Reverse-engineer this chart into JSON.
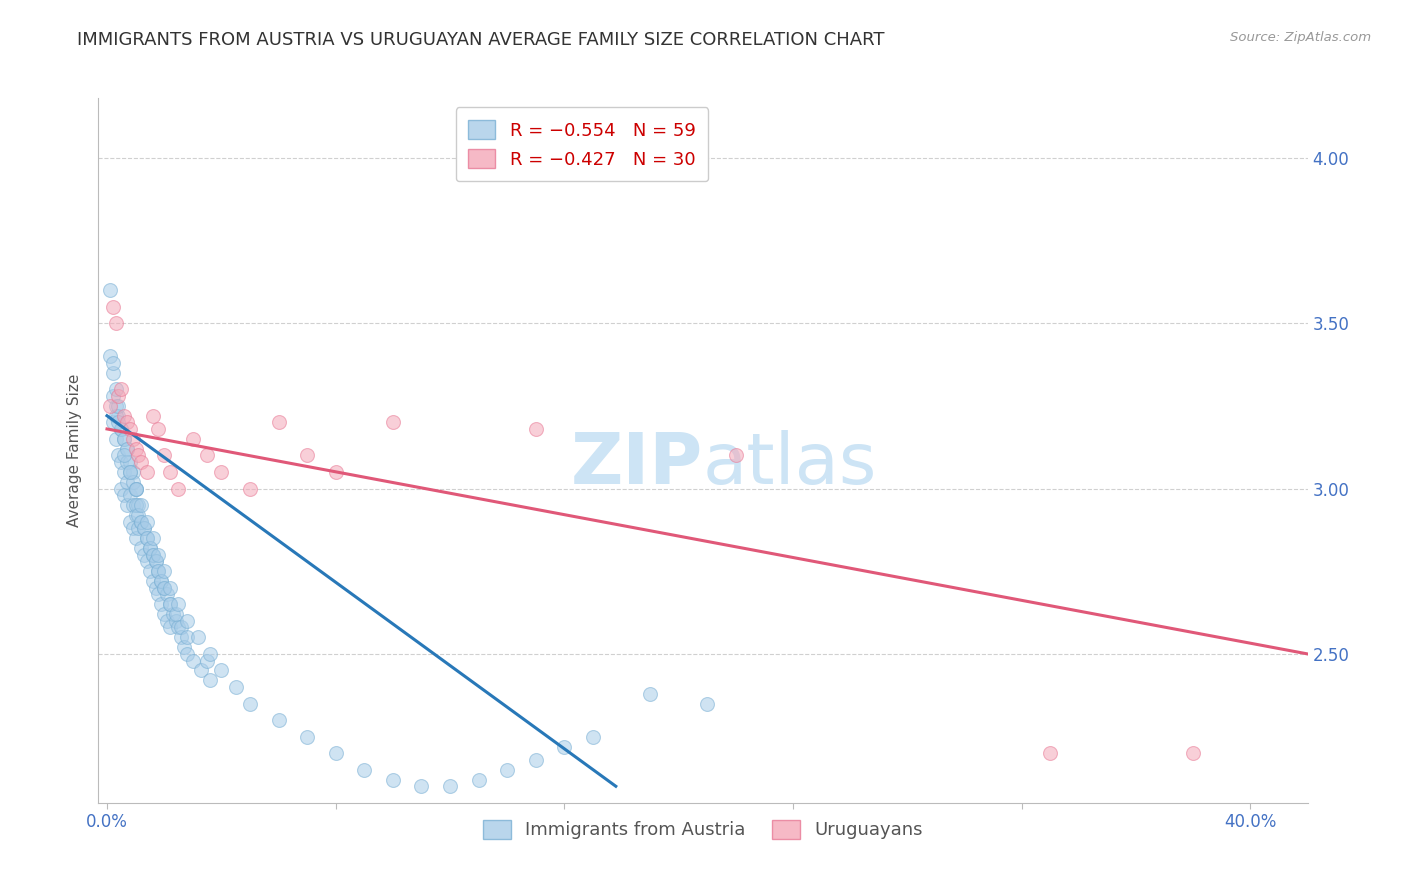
{
  "title": "IMMIGRANTS FROM AUSTRIA VS URUGUAYAN AVERAGE FAMILY SIZE CORRELATION CHART",
  "source": "Source: ZipAtlas.com",
  "ylabel": "Average Family Size",
  "yticks_right": [
    2.5,
    3.0,
    3.5,
    4.0
  ],
  "ytick_labels_right": [
    "2.50",
    "3.00",
    "3.50",
    "4.00"
  ],
  "ylim": [
    2.05,
    4.18
  ],
  "xlim": [
    -0.003,
    0.42
  ],
  "watermark_zip": "ZIP",
  "watermark_atlas": "atlas",
  "blue_scatter_x": [
    0.002,
    0.002,
    0.003,
    0.003,
    0.004,
    0.004,
    0.005,
    0.005,
    0.005,
    0.006,
    0.006,
    0.006,
    0.007,
    0.007,
    0.007,
    0.008,
    0.008,
    0.008,
    0.009,
    0.009,
    0.009,
    0.01,
    0.01,
    0.01,
    0.011,
    0.011,
    0.012,
    0.012,
    0.013,
    0.013,
    0.014,
    0.014,
    0.015,
    0.015,
    0.016,
    0.016,
    0.017,
    0.017,
    0.018,
    0.018,
    0.019,
    0.019,
    0.02,
    0.02,
    0.021,
    0.021,
    0.022,
    0.022,
    0.023,
    0.024,
    0.025,
    0.026,
    0.027,
    0.028,
    0.03,
    0.033,
    0.036,
    0.19,
    0.21
  ],
  "blue_scatter_y": [
    3.35,
    3.2,
    3.25,
    3.15,
    3.22,
    3.1,
    3.18,
    3.08,
    3.0,
    3.15,
    3.05,
    2.98,
    3.12,
    3.02,
    2.95,
    3.08,
    2.98,
    2.9,
    3.05,
    2.95,
    2.88,
    3.0,
    2.92,
    2.85,
    2.95,
    2.88,
    2.9,
    2.82,
    2.88,
    2.8,
    2.85,
    2.78,
    2.82,
    2.75,
    2.8,
    2.72,
    2.78,
    2.7,
    2.75,
    2.68,
    2.72,
    2.65,
    2.7,
    2.62,
    2.68,
    2.6,
    2.65,
    2.58,
    2.62,
    2.6,
    2.58,
    2.55,
    2.52,
    2.5,
    2.48,
    2.45,
    2.42,
    2.38,
    2.35
  ],
  "blue_scatter_x2": [
    0.001,
    0.001,
    0.002,
    0.002,
    0.003,
    0.003,
    0.004,
    0.005,
    0.006,
    0.007,
    0.007,
    0.008,
    0.009,
    0.01,
    0.01,
    0.011,
    0.012,
    0.013,
    0.014,
    0.015,
    0.016,
    0.017,
    0.018,
    0.019,
    0.02,
    0.022,
    0.024,
    0.026,
    0.028,
    0.035,
    0.004,
    0.006,
    0.008,
    0.01,
    0.012,
    0.014,
    0.016,
    0.018,
    0.02,
    0.022,
    0.025,
    0.028,
    0.032,
    0.036,
    0.04,
    0.045,
    0.05,
    0.06,
    0.07,
    0.08,
    0.09,
    0.1,
    0.11,
    0.12,
    0.13,
    0.14,
    0.15,
    0.16,
    0.17
  ],
  "blue_scatter_y2": [
    3.6,
    3.4,
    3.38,
    3.28,
    3.3,
    3.22,
    3.25,
    3.18,
    3.15,
    3.12,
    3.08,
    3.05,
    3.02,
    3.0,
    2.95,
    2.92,
    2.9,
    2.88,
    2.85,
    2.82,
    2.8,
    2.78,
    2.75,
    2.72,
    2.7,
    2.65,
    2.62,
    2.58,
    2.55,
    2.48,
    3.2,
    3.1,
    3.05,
    3.0,
    2.95,
    2.9,
    2.85,
    2.8,
    2.75,
    2.7,
    2.65,
    2.6,
    2.55,
    2.5,
    2.45,
    2.4,
    2.35,
    2.3,
    2.25,
    2.2,
    2.15,
    2.12,
    2.1,
    2.1,
    2.12,
    2.15,
    2.18,
    2.22,
    2.25
  ],
  "pink_scatter_x": [
    0.001,
    0.002,
    0.003,
    0.004,
    0.005,
    0.006,
    0.007,
    0.008,
    0.009,
    0.01,
    0.011,
    0.012,
    0.014,
    0.016,
    0.018,
    0.02,
    0.022,
    0.025,
    0.03,
    0.035,
    0.04,
    0.05,
    0.06,
    0.07,
    0.08,
    0.1,
    0.15,
    0.22,
    0.33,
    0.38
  ],
  "pink_scatter_y": [
    3.25,
    3.55,
    3.5,
    3.28,
    3.3,
    3.22,
    3.2,
    3.18,
    3.15,
    3.12,
    3.1,
    3.08,
    3.05,
    3.22,
    3.18,
    3.1,
    3.05,
    3.0,
    3.15,
    3.1,
    3.05,
    3.0,
    3.2,
    3.1,
    3.05,
    3.2,
    3.18,
    3.1,
    2.2,
    2.2
  ],
  "blue_line_x": [
    0.0,
    0.178
  ],
  "blue_line_y": [
    3.22,
    2.1
  ],
  "pink_line_x": [
    0.0,
    0.42
  ],
  "pink_line_y": [
    3.18,
    2.5
  ],
  "blue_color": "#a8cce8",
  "pink_color": "#f4a8b8",
  "blue_edge_color": "#7ab0d4",
  "pink_edge_color": "#e87a96",
  "blue_line_color": "#2878b8",
  "pink_line_color": "#e05878",
  "grid_color": "#d0d0d0",
  "background_color": "#ffffff",
  "title_fontsize": 13,
  "axis_label_fontsize": 11,
  "tick_fontsize": 12,
  "legend_fontsize": 13,
  "scatter_size": 100,
  "scatter_alpha": 0.55,
  "scatter_linewidth": 0.8
}
